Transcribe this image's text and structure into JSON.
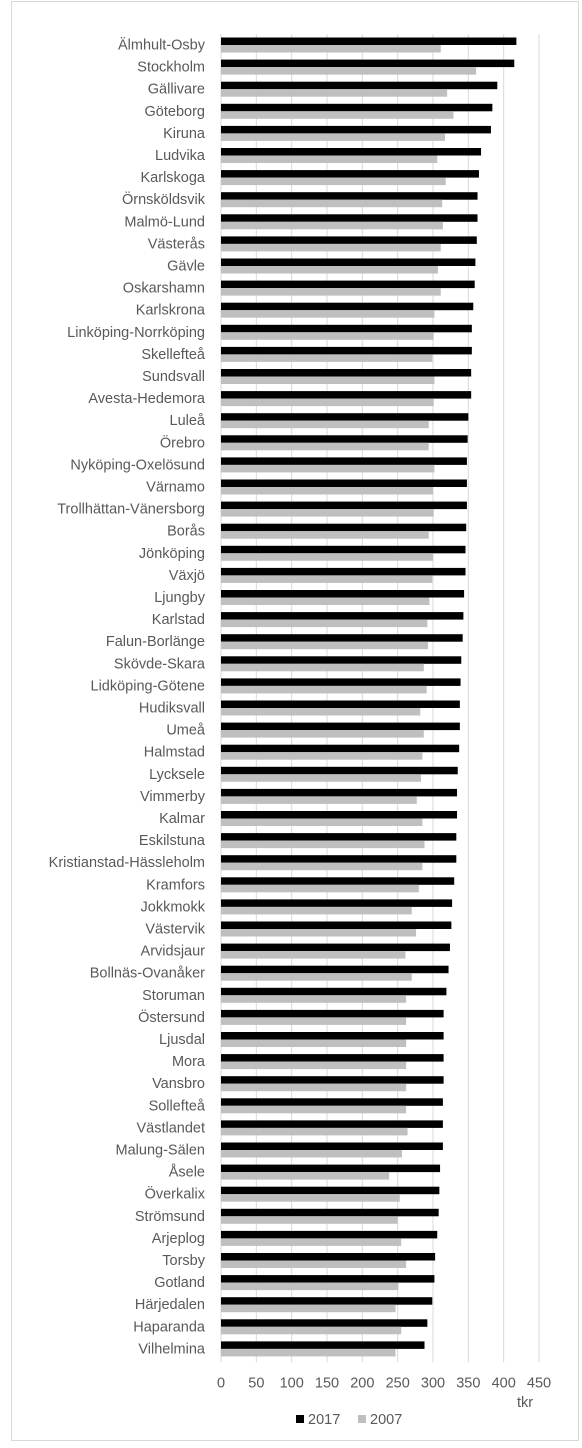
{
  "chart_data": {
    "type": "bar",
    "orientation": "horizontal",
    "categories": [
      "Älmhult-Osby",
      "Stockholm",
      "Gällivare",
      "Göteborg",
      "Kiruna",
      "Ludvika",
      "Karlskoga",
      "Örnsköldsvik",
      "Malmö-Lund",
      "Västerås",
      "Gävle",
      "Oskarshamn",
      "Karlskrona",
      "Linköping-Norrköping",
      "Skellefteå",
      "Sundsvall",
      "Avesta-Hedemora",
      "Luleå",
      "Örebro",
      "Nyköping-Oxelösund",
      "Värnamo",
      "Trollhättan-Vänersborg",
      "Borås",
      "Jönköping",
      "Växjö",
      "Ljungby",
      "Karlstad",
      "Falun-Borlänge",
      "Skövde-Skara",
      "Lidköping-Götene",
      "Hudiksvall",
      "Umeå",
      "Halmstad",
      "Lycksele",
      "Vimmerby",
      "Kalmar",
      "Eskilstuna",
      "Kristianstad-Hässleholm",
      "Kramfors",
      "Jokkmokk",
      "Västervik",
      "Arvidsjaur",
      "Bollnäs-Ovanåker",
      "Storuman",
      "Östersund",
      "Ljusdal",
      "Mora",
      "Vansbro",
      "Sollefteå",
      "Västlandet",
      "Malung-Sälen",
      "Åsele",
      "Överkalix",
      "Strömsund",
      "Arjeplog",
      "Torsby",
      "Gotland",
      "Härjedalen",
      "Haparanda",
      "Vilhelmina"
    ],
    "series": [
      {
        "name": "2017",
        "color": "#000000",
        "values": [
          418,
          415,
          391,
          384,
          382,
          368,
          365,
          363,
          363,
          362,
          360,
          359,
          357,
          355,
          355,
          354,
          354,
          350,
          349,
          348,
          348,
          348,
          347,
          346,
          346,
          344,
          343,
          342,
          340,
          339,
          338,
          338,
          337,
          335,
          334,
          334,
          333,
          333,
          330,
          327,
          326,
          324,
          322,
          319,
          315,
          315,
          315,
          315,
          314,
          314,
          314,
          310,
          309,
          308,
          306,
          303,
          302,
          299,
          292,
          288
        ]
      },
      {
        "name": "2007",
        "color": "#bfbfbf",
        "values": [
          311,
          361,
          320,
          329,
          317,
          306,
          318,
          313,
          314,
          311,
          307,
          311,
          302,
          301,
          299,
          302,
          301,
          294,
          294,
          302,
          300,
          301,
          294,
          300,
          299,
          295,
          292,
          293,
          287,
          291,
          282,
          287,
          285,
          283,
          277,
          285,
          288,
          285,
          280,
          270,
          276,
          261,
          270,
          262,
          262,
          262,
          262,
          262,
          262,
          264,
          256,
          238,
          253,
          250,
          255,
          262,
          251,
          247,
          255,
          247
        ]
      }
    ],
    "xlim": [
      0,
      450
    ],
    "xticks": [
      0,
      50,
      100,
      150,
      200,
      250,
      300,
      350,
      400,
      450
    ],
    "x_unit": "tkr",
    "grid": true,
    "legend": "bottom-center"
  }
}
